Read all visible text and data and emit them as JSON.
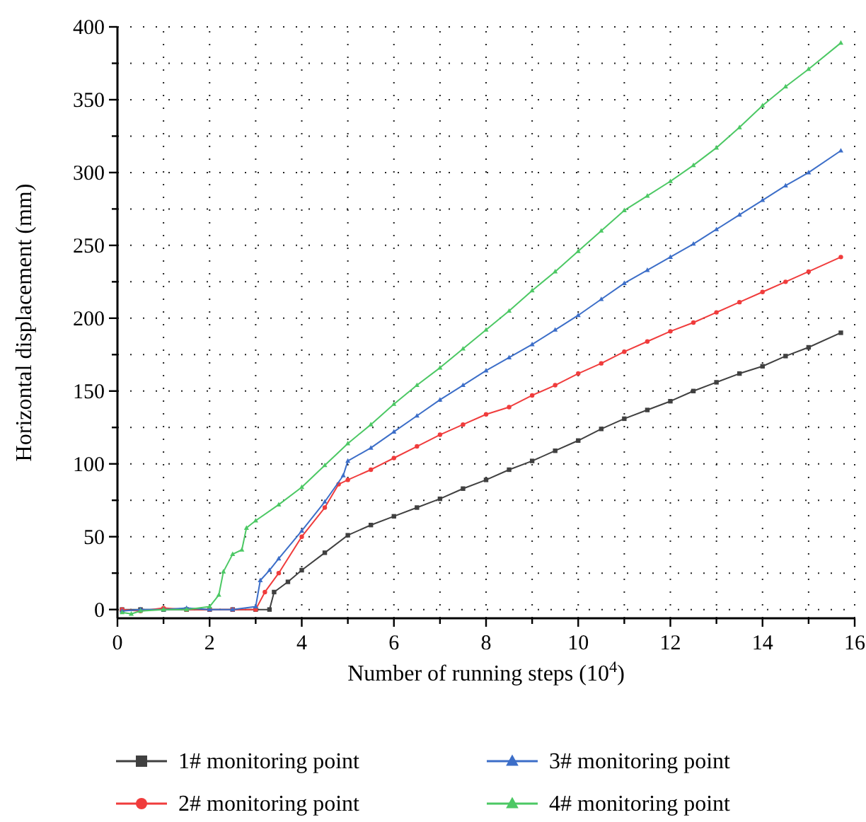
{
  "chart_data": {
    "type": "line",
    "xlabel": "Number of running steps (10$^{4}$)",
    "ylabel": "Horizontal displacement (mm)",
    "xlim": [
      0,
      16
    ],
    "ylim": [
      -6,
      400
    ],
    "xticks": [
      0,
      {
        "value": 1,
        "label": null
      },
      2,
      {
        "value": 3,
        "label": null
      },
      4,
      {
        "value": 5,
        "label": null
      },
      6,
      {
        "value": 7,
        "label": null
      },
      8,
      {
        "value": 9,
        "label": null
      },
      10,
      {
        "value": 11,
        "label": null
      },
      12,
      {
        "value": 13,
        "label": null
      },
      14,
      {
        "value": 15,
        "label": null
      },
      16
    ],
    "yticks": [
      0,
      {
        "value": 25,
        "label": null
      },
      50,
      {
        "value": 75,
        "label": null
      },
      100,
      {
        "value": 125,
        "label": null
      },
      150,
      {
        "value": 175,
        "label": null
      },
      200,
      {
        "value": 225,
        "label": null
      },
      250,
      {
        "value": 275,
        "label": null
      },
      300,
      {
        "value": 325,
        "label": null
      },
      350,
      {
        "value": 375,
        "label": null
      },
      400
    ],
    "grid": true,
    "legend": "bottom",
    "line_style": "solid",
    "series": [
      {
        "name": "1# monitoring point",
        "color": "#404040",
        "marker": "square",
        "x": [
          0.1,
          0.5,
          1,
          1.5,
          2,
          2.5,
          3,
          3.3,
          3.4,
          3.7,
          4,
          4.5,
          5,
          5.5,
          6,
          6.5,
          7,
          7.5,
          8,
          8.5,
          9,
          9.5,
          10,
          10.5,
          11,
          11.5,
          12,
          12.5,
          13,
          13.5,
          14,
          14.5,
          15,
          15.7
        ],
        "values": [
          0,
          0,
          0,
          0,
          0,
          0,
          0,
          0,
          12,
          19,
          27,
          39,
          51,
          58,
          64,
          70,
          76,
          83,
          89,
          96,
          102,
          109,
          116,
          124,
          131,
          137,
          143,
          150,
          156,
          162,
          167,
          174,
          180,
          190
        ]
      },
      {
        "name": "2# monitoring point",
        "color": "#f03c3c",
        "marker": "circle",
        "x": [
          0.1,
          0.5,
          1,
          1.5,
          2,
          2.5,
          3,
          3.2,
          3.5,
          4,
          4.5,
          4.8,
          5,
          5.5,
          6,
          6.5,
          7,
          7.5,
          8,
          8.5,
          9,
          9.5,
          10,
          10.5,
          11,
          11.5,
          12,
          12.5,
          13,
          13.5,
          14,
          14.5,
          15,
          15.7
        ],
        "values": [
          0,
          -1,
          1,
          0,
          0,
          0,
          0,
          12,
          25,
          50,
          70,
          86,
          89,
          96,
          104,
          112,
          120,
          127,
          134,
          139,
          147,
          154,
          162,
          169,
          177,
          184,
          191,
          197,
          204,
          211,
          218,
          225,
          232,
          242
        ]
      },
      {
        "name": "3# monitoring point",
        "color": "#3c6ec8",
        "marker": "triangle",
        "x": [
          0.1,
          0.5,
          1,
          1.5,
          2,
          2.5,
          3,
          3.1,
          3.3,
          3.5,
          4,
          4.5,
          4.9,
          5,
          5.5,
          6,
          6.5,
          7,
          7.5,
          8,
          8.5,
          9,
          9.5,
          10,
          10.5,
          11,
          11.5,
          12,
          12.5,
          13,
          13.5,
          14,
          14.5,
          15,
          15.7
        ],
        "values": [
          -1,
          0,
          0,
          1,
          0,
          0,
          2,
          20,
          27,
          35,
          54,
          74,
          92,
          102,
          111,
          122,
          133,
          144,
          154,
          164,
          173,
          182,
          192,
          202,
          213,
          224,
          233,
          242,
          251,
          261,
          271,
          281,
          291,
          300,
          315
        ]
      },
      {
        "name": "4# monitoring point",
        "color": "#4cc864",
        "marker": "triangle",
        "x": [
          0.1,
          0.3,
          0.5,
          1,
          1.5,
          2,
          2.2,
          2.3,
          2.5,
          2.7,
          2.8,
          3,
          3.5,
          4,
          4.5,
          5,
          5.5,
          6,
          6.5,
          7,
          7.5,
          8,
          8.5,
          9,
          9.5,
          10,
          10.5,
          11,
          11.5,
          12,
          12.5,
          13,
          13.5,
          14,
          14.5,
          15,
          15.7
        ],
        "values": [
          -2,
          -3,
          -1,
          0,
          0,
          2,
          10,
          26,
          38,
          41,
          56,
          61,
          72,
          84,
          99,
          114,
          127,
          141,
          154,
          166,
          179,
          192,
          205,
          219,
          232,
          246,
          260,
          274,
          284,
          294,
          305,
          317,
          331,
          346,
          359,
          371,
          389
        ]
      }
    ]
  }
}
